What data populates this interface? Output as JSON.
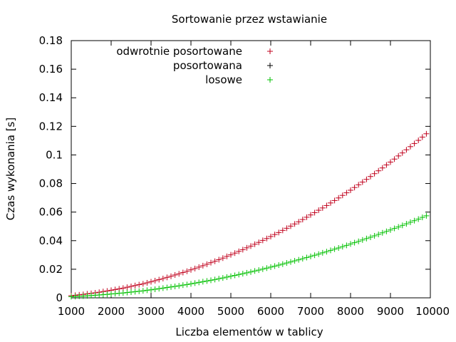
{
  "chart_data": {
    "type": "scatter",
    "title": "Sortowanie przez wstawianie",
    "xlabel": "Liczba elementów w tablicy",
    "ylabel": "Czas wykonania [s]",
    "xlim": [
      1000,
      10000
    ],
    "ylim": [
      0,
      0.18
    ],
    "xticks": [
      1000,
      2000,
      3000,
      4000,
      5000,
      6000,
      7000,
      8000,
      9000,
      10000
    ],
    "yticks": [
      0,
      0.02,
      0.04,
      0.06,
      0.08,
      0.1,
      0.12,
      0.14,
      0.16,
      0.18
    ],
    "xtick_labels": [
      "1000",
      "2000",
      "3000",
      "4000",
      "5000",
      "6000",
      "7000",
      "8000",
      "9000",
      "10000"
    ],
    "ytick_labels": [
      "0",
      "0.02",
      "0.04",
      "0.06",
      "0.08",
      "0.1",
      "0.12",
      "0.14",
      "0.16",
      "0.18"
    ],
    "grid": false,
    "legend_position": "top-left",
    "marker": "+",
    "x": [
      1000,
      1100,
      1200,
      1300,
      1400,
      1500,
      1600,
      1700,
      1800,
      1900,
      2000,
      2100,
      2200,
      2300,
      2400,
      2500,
      2600,
      2700,
      2800,
      2900,
      3000,
      3100,
      3200,
      3300,
      3400,
      3500,
      3600,
      3700,
      3800,
      3900,
      4000,
      4100,
      4200,
      4300,
      4400,
      4500,
      4600,
      4700,
      4800,
      4900,
      5000,
      5100,
      5200,
      5300,
      5400,
      5500,
      5600,
      5700,
      5800,
      5900,
      6000,
      6100,
      6200,
      6300,
      6400,
      6500,
      6600,
      6700,
      6800,
      6900,
      7000,
      7100,
      7200,
      7300,
      7400,
      7500,
      7600,
      7700,
      7800,
      7900,
      8000,
      8100,
      8200,
      8300,
      8400,
      8500,
      8600,
      8700,
      8800,
      8900,
      9000,
      9100,
      9200,
      9300,
      9400,
      9500,
      9600,
      9700,
      9800,
      9900
    ],
    "series": [
      {
        "name": "odwrotnie posortowane",
        "color": "#c0001c",
        "values": [
          0.0015,
          0.0018,
          0.0021,
          0.0024,
          0.0028,
          0.0031,
          0.0035,
          0.0039,
          0.0044,
          0.0048,
          0.0053,
          0.0058,
          0.0063,
          0.0068,
          0.0074,
          0.008,
          0.0086,
          0.0092,
          0.0098,
          0.0105,
          0.0112,
          0.012,
          0.0127,
          0.0135,
          0.0143,
          0.0151,
          0.016,
          0.0168,
          0.0177,
          0.0186,
          0.0196,
          0.0205,
          0.0215,
          0.0225,
          0.0235,
          0.0246,
          0.0256,
          0.0267,
          0.0278,
          0.029,
          0.0301,
          0.0313,
          0.0325,
          0.0337,
          0.035,
          0.0362,
          0.0375,
          0.0388,
          0.0402,
          0.0415,
          0.0429,
          0.0443,
          0.0457,
          0.0472,
          0.0487,
          0.0502,
          0.0517,
          0.0532,
          0.0548,
          0.0564,
          0.058,
          0.0596,
          0.0613,
          0.0629,
          0.0646,
          0.0664,
          0.0681,
          0.0699,
          0.0717,
          0.0735,
          0.0753,
          0.0772,
          0.0791,
          0.081,
          0.0829,
          0.0849,
          0.0869,
          0.0889,
          0.0909,
          0.093,
          0.095,
          0.0971,
          0.0993,
          0.1014,
          0.1036,
          0.1058,
          0.108,
          0.1102,
          0.1125,
          0.1148
        ]
      },
      {
        "name": "posortowana",
        "color": "#000000",
        "values": []
      },
      {
        "name": "losowe",
        "color": "#00c000",
        "values": [
          0.0008,
          0.0009,
          0.0011,
          0.0012,
          0.0014,
          0.0016,
          0.0018,
          0.002,
          0.0022,
          0.0024,
          0.0027,
          0.0029,
          0.0032,
          0.0034,
          0.0037,
          0.004,
          0.0043,
          0.0046,
          0.0049,
          0.0053,
          0.0056,
          0.006,
          0.0064,
          0.0068,
          0.0072,
          0.0076,
          0.008,
          0.0084,
          0.0089,
          0.0093,
          0.0098,
          0.0103,
          0.0108,
          0.0113,
          0.0118,
          0.0123,
          0.0128,
          0.0134,
          0.0139,
          0.0145,
          0.0151,
          0.0157,
          0.0163,
          0.0169,
          0.0175,
          0.0181,
          0.0188,
          0.0194,
          0.0201,
          0.0208,
          0.0215,
          0.0222,
          0.0229,
          0.0236,
          0.0244,
          0.0251,
          0.0259,
          0.0266,
          0.0274,
          0.0282,
          0.029,
          0.0298,
          0.0306,
          0.0315,
          0.0323,
          0.0332,
          0.0341,
          0.0349,
          0.0358,
          0.0367,
          0.0377,
          0.0386,
          0.0395,
          0.0405,
          0.0415,
          0.0424,
          0.0434,
          0.0444,
          0.0455,
          0.0465,
          0.0475,
          0.0486,
          0.0496,
          0.0507,
          0.0518,
          0.0529,
          0.054,
          0.0551,
          0.0563,
          0.0574
        ]
      }
    ]
  }
}
